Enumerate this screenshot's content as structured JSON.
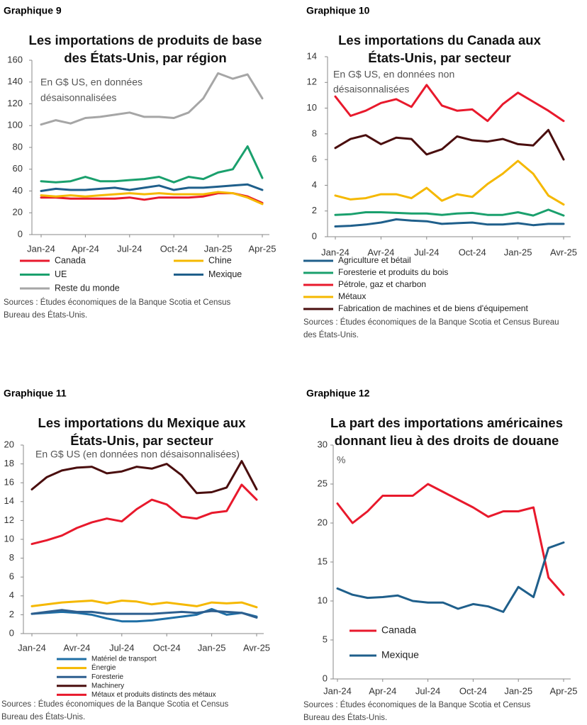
{
  "chart_data": [
    {
      "type": "line",
      "label": "Graphique 9",
      "title": [
        "Les importations de produits de base",
        "des États-Unis, par région"
      ],
      "subtitle": [
        "En G$ US, en données",
        "désaisonnalisées"
      ],
      "categories": [
        "Jan-24",
        null,
        null,
        "Apr-24",
        null,
        null,
        "Jul-24",
        null,
        null,
        "Oct-24",
        null,
        null,
        "Jan-25",
        null,
        null,
        "Apr-25"
      ],
      "ylim": [
        0,
        160
      ],
      "yticks": [
        0,
        20,
        40,
        60,
        80,
        100,
        120,
        140,
        160
      ],
      "legend": "bottom",
      "series": [
        {
          "name": "Canada",
          "color": "#e8192c",
          "values": [
            34,
            34,
            33,
            33,
            33,
            33,
            34,
            32,
            34,
            34,
            34,
            35,
            38,
            38,
            35,
            29
          ]
        },
        {
          "name": "Chine",
          "color": "#f5b800",
          "values": [
            36,
            35,
            36,
            35,
            36,
            37,
            38,
            37,
            38,
            37,
            37,
            37,
            39,
            38,
            34,
            28
          ]
        },
        {
          "name": "UE",
          "color": "#1aa06d",
          "values": [
            49,
            48,
            49,
            53,
            49,
            49,
            50,
            51,
            53,
            48,
            53,
            51,
            57,
            60,
            81,
            52
          ]
        },
        {
          "name": "Mexique",
          "color": "#1f5f8b",
          "values": [
            40,
            42,
            41,
            41,
            42,
            43,
            41,
            43,
            45,
            41,
            43,
            43,
            44,
            45,
            46,
            41
          ]
        },
        {
          "name": "Reste du monde",
          "color": "#a6a6a6",
          "values": [
            101,
            105,
            102,
            107,
            108,
            110,
            112,
            108,
            108,
            107,
            112,
            125,
            148,
            143,
            147,
            125
          ]
        }
      ],
      "source": [
        "Sources : Études économiques de la Banque Scotia et Census",
        "Bureau des États-Unis."
      ]
    },
    {
      "type": "line",
      "label": "Graphique 10",
      "title": [
        "Les importations du Canada aux",
        "États-Unis, par secteur"
      ],
      "subtitle": [
        "En G$ US, en données non",
        "désaisonnalisées"
      ],
      "categories": [
        "Jan-24",
        null,
        null,
        "Avr-24",
        null,
        null,
        "Jul-24",
        null,
        null,
        "Oct-24",
        null,
        null,
        "Jan-25",
        null,
        null,
        "Avr-25"
      ],
      "ylim": [
        0,
        14
      ],
      "yticks": [
        0,
        2,
        4,
        6,
        8,
        10,
        12,
        14
      ],
      "legend": "bottom",
      "series": [
        {
          "name": "Agriculture et bétail",
          "color": "#1f5f8b",
          "values": [
            0.8,
            0.85,
            0.95,
            1.1,
            1.35,
            1.25,
            1.2,
            1.0,
            1.05,
            1.1,
            0.95,
            0.95,
            1.05,
            0.9,
            1.0,
            1.0
          ]
        },
        {
          "name": "Foresterie et produits du bois",
          "color": "#1aa06d",
          "values": [
            1.7,
            1.75,
            1.9,
            1.9,
            1.85,
            1.8,
            1.8,
            1.7,
            1.8,
            1.85,
            1.7,
            1.7,
            1.9,
            1.65,
            2.1,
            1.65
          ]
        },
        {
          "name": "Pétrole, gaz et charbon",
          "color": "#e8192c",
          "values": [
            10.9,
            9.4,
            9.8,
            10.4,
            10.7,
            10.1,
            11.8,
            10.2,
            9.8,
            9.9,
            9.0,
            10.3,
            11.2,
            10.5,
            9.8,
            9.0
          ]
        },
        {
          "name": "Métaux",
          "color": "#f5b800",
          "values": [
            3.2,
            2.9,
            3.0,
            3.3,
            3.3,
            3.0,
            3.8,
            2.8,
            3.3,
            3.1,
            4.1,
            4.9,
            5.9,
            4.9,
            3.2,
            2.5
          ]
        },
        {
          "name": "Fabrication de machines et de biens d'équipement",
          "color": "#4a0e0e",
          "values": [
            6.9,
            7.6,
            7.9,
            7.2,
            7.7,
            7.6,
            6.4,
            6.8,
            7.8,
            7.5,
            7.4,
            7.6,
            7.2,
            7.1,
            8.3,
            6.0
          ]
        }
      ],
      "source": [
        "Sources : Études économiques de la Banque Scotia et Census Bureau",
        "des États-Unis."
      ]
    },
    {
      "type": "line",
      "label": "Graphique 11",
      "title": [
        "Les importations du Mexique aux",
        "États-Unis, par secteur"
      ],
      "subtitle": [
        "En G$ US (en données non désaisonnalisées)"
      ],
      "categories": [
        "Jan-24",
        null,
        null,
        "Avr-24",
        null,
        null,
        "Jul-24",
        null,
        null,
        "Oct-24",
        null,
        null,
        "Jan-25",
        null,
        null,
        "Avr-25"
      ],
      "ylim": [
        0,
        20
      ],
      "yticks": [
        0,
        2,
        4,
        6,
        8,
        10,
        12,
        14,
        16,
        18,
        20
      ],
      "legend": "bottom",
      "series": [
        {
          "name": "Matériel de transport",
          "color": "#1f6fa6",
          "values": [
            2.1,
            2.2,
            2.3,
            2.2,
            2.0,
            1.6,
            1.3,
            1.3,
            1.4,
            1.6,
            1.8,
            2.0,
            2.6,
            2.0,
            2.2,
            1.8
          ]
        },
        {
          "name": "Énergie",
          "color": "#f5b800",
          "values": [
            2.9,
            3.1,
            3.3,
            3.4,
            3.5,
            3.2,
            3.5,
            3.4,
            3.1,
            3.3,
            3.1,
            2.9,
            3.3,
            3.2,
            3.3,
            2.8
          ]
        },
        {
          "name": "Foresterie",
          "color": "#2d5f8f",
          "values": [
            2.1,
            2.3,
            2.5,
            2.3,
            2.3,
            2.1,
            2.1,
            2.1,
            2.1,
            2.2,
            2.3,
            2.2,
            2.4,
            2.3,
            2.2,
            1.7
          ]
        },
        {
          "name": "Machinery",
          "color": "#4a0e0e",
          "values": [
            15.3,
            16.6,
            17.3,
            17.6,
            17.7,
            17.0,
            17.2,
            17.7,
            17.5,
            18.0,
            16.8,
            14.9,
            15.0,
            15.5,
            18.3,
            15.3
          ]
        },
        {
          "name": "Métaux et produits distincts des métaux",
          "color": "#e8192c",
          "values": [
            9.5,
            9.9,
            10.4,
            11.2,
            11.8,
            12.2,
            11.9,
            13.2,
            14.2,
            13.7,
            12.4,
            12.2,
            12.8,
            13.0,
            15.8,
            14.2
          ]
        }
      ],
      "source": [
        "Sources : Études économiques de la Banque Scotia et Census",
        "Bureau des États-Unis."
      ]
    },
    {
      "type": "line",
      "label": "Graphique 12",
      "title": [
        "La part des importations américaines",
        "donnant lieu à des droits de douane"
      ],
      "subtitle": [
        "%"
      ],
      "categories": [
        "Jan-24",
        null,
        null,
        "Apr-24",
        null,
        null,
        "Jul-24",
        null,
        null,
        "Oct-24",
        null,
        null,
        "Jan-25",
        null,
        null,
        "Apr-25"
      ],
      "ylim": [
        0,
        30
      ],
      "yticks": [
        0,
        5,
        10,
        15,
        20,
        25,
        30
      ],
      "legend": "inside",
      "series": [
        {
          "name": "Canada",
          "color": "#e8192c",
          "values": [
            22.5,
            20.0,
            21.5,
            23.5,
            23.5,
            23.5,
            25.0,
            24.0,
            23.0,
            22.0,
            20.8,
            21.5,
            21.5,
            22.0,
            13.0,
            10.8
          ]
        },
        {
          "name": "Mexique",
          "color": "#1f5f8b",
          "values": [
            11.6,
            10.8,
            10.4,
            10.5,
            10.7,
            10.0,
            9.8,
            9.8,
            9.0,
            9.6,
            9.3,
            8.6,
            11.8,
            10.5,
            16.8,
            17.5
          ]
        }
      ],
      "source": [
        "Sources : Études économiques de la Banque Scotia et Census",
        "Bureau des États-Unis."
      ]
    }
  ]
}
